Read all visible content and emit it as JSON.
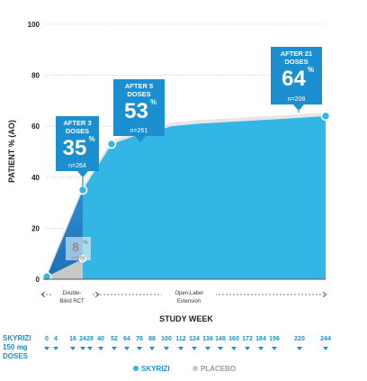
{
  "chart_data": {
    "type": "area",
    "ylabel": "PATIENT % (AO)",
    "xlabel": "STUDY WEEK",
    "ylim": [
      0,
      100
    ],
    "y_ticks": [
      "0",
      "20",
      "40",
      "60",
      "80",
      "100"
    ],
    "grid": true,
    "phases": [
      {
        "label_lines": [
          "Double-",
          "Blind RCT"
        ]
      },
      {
        "label_lines": [
          "Open-Label",
          "Extension"
        ]
      }
    ],
    "series": [
      {
        "name": "SKYRIZI",
        "color": "#33b5e5",
        "points": [
          {
            "week": 0,
            "value": 1
          },
          {
            "week": 16,
            "value": 35
          },
          {
            "week": 28,
            "value": 53
          },
          {
            "week": 40,
            "value": 56
          },
          {
            "week": 52,
            "value": 57
          },
          {
            "week": 76,
            "value": 60
          },
          {
            "week": 100,
            "value": 61
          },
          {
            "week": 148,
            "value": 62
          },
          {
            "week": 196,
            "value": 63
          },
          {
            "week": 244,
            "value": 64
          }
        ]
      },
      {
        "name": "PLACEBO",
        "color": "#c8c8c8",
        "points": [
          {
            "week": 0,
            "value": 1
          },
          {
            "week": 16,
            "value": 8
          }
        ]
      }
    ],
    "callouts": [
      {
        "title_lines": [
          "AFTER 3",
          "DOSES"
        ],
        "value": "35",
        "suffix": "%",
        "n": "n=264"
      },
      {
        "title_lines": [
          "AFTER 5",
          "DOSES"
        ],
        "value": "53",
        "suffix": "%",
        "n": "n=261"
      },
      {
        "title_lines": [
          "AFTER 21",
          "DOSES"
        ],
        "value": "64",
        "suffix": "%",
        "n": "n=208"
      }
    ],
    "placebo_callout": {
      "value": "8",
      "suffix": "%",
      "n": "n=259"
    },
    "dosing": {
      "label_lines": [
        "SKYRIZI",
        "150 mg",
        "DOSES"
      ],
      "weeks": [
        "0",
        "4",
        "16",
        "24",
        "28",
        "40",
        "52",
        "64",
        "76",
        "88",
        "100",
        "112",
        "124",
        "136",
        "148",
        "160",
        "172",
        "184",
        "196",
        "220",
        "244"
      ]
    },
    "legend": [
      {
        "label": "SKYRIZI",
        "color": "#33b5e5"
      },
      {
        "label": "PLACEBO",
        "color": "#c8c8c8"
      }
    ]
  }
}
